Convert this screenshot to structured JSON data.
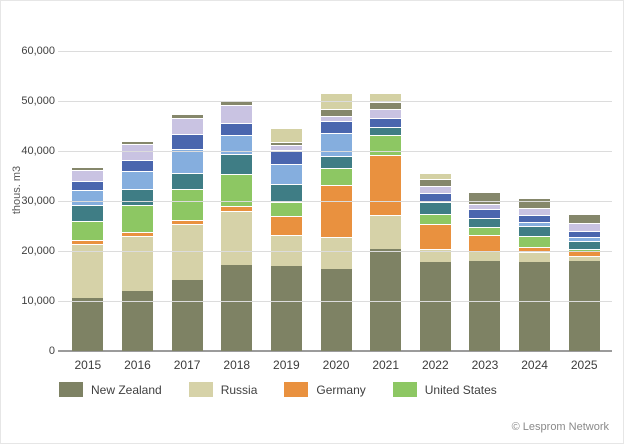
{
  "chart": {
    "ylabel": "thous. m3",
    "footer_credit": "© Lesprom Network",
    "grid_color": "#dcdcdc",
    "axis_color": "#9b9b9b",
    "background_color": "#ffffff"
  },
  "chart_data": {
    "type": "bar",
    "subtype": "stacked",
    "title": "",
    "xlabel": "",
    "ylabel": "thous. m3",
    "ylim": [
      0,
      60000
    ],
    "ytick_step": 10000,
    "ytick_labels": [
      "0",
      "10,000",
      "20,000",
      "30,000",
      "40,000",
      "50,000",
      "60,000"
    ],
    "grid": true,
    "legend_position": "bottom",
    "categories": [
      "2015",
      "2016",
      "2017",
      "2018",
      "2019",
      "2020",
      "2021",
      "2022",
      "2023",
      "2024",
      "2025"
    ],
    "series": [
      {
        "name": "New Zealand",
        "color": "#7e8264",
        "in_legend": true,
        "values": [
          10600,
          12000,
          14100,
          17100,
          17000,
          16300,
          20300,
          17700,
          18000,
          17700,
          18000
        ]
      },
      {
        "name": "Russia",
        "color": "#d6d2a8",
        "in_legend": true,
        "values": [
          10700,
          11000,
          11100,
          10700,
          6200,
          6400,
          6700,
          2600,
          2000,
          2000,
          1000
        ]
      },
      {
        "name": "Germany",
        "color": "#e9913f",
        "in_legend": true,
        "values": [
          700,
          700,
          800,
          900,
          3800,
          10300,
          12000,
          5000,
          3100,
          1000,
          1000
        ]
      },
      {
        "name": "United States",
        "color": "#8dc763",
        "in_legend": true,
        "values": [
          3800,
          5300,
          6100,
          6400,
          2700,
          3300,
          3900,
          2000,
          1600,
          2100,
          300
        ]
      },
      {
        "name": "unlabeled-teal",
        "color": "#3f7d85",
        "in_legend": false,
        "values": [
          3200,
          3100,
          3200,
          3900,
          3500,
          2400,
          1600,
          2300,
          1700,
          1900,
          1500
        ]
      },
      {
        "name": "unlabeled-light-blue",
        "color": "#85aede",
        "in_legend": false,
        "values": [
          3000,
          3600,
          4700,
          3700,
          4000,
          4600,
          0,
          0,
          0,
          700,
          700
        ]
      },
      {
        "name": "unlabeled-dark-blue",
        "color": "#4a66ae",
        "in_legend": false,
        "values": [
          1800,
          2100,
          3000,
          2300,
          2700,
          2400,
          1800,
          1700,
          1700,
          1300,
          1200
        ]
      },
      {
        "name": "unlabeled-lavender",
        "color": "#c9c3e2",
        "in_legend": false,
        "values": [
          2200,
          3100,
          3200,
          3500,
          900,
          1000,
          1700,
          1400,
          1000,
          1300,
          1600
        ]
      },
      {
        "name": "unlabeled-olive-gray",
        "color": "#85876b",
        "in_legend": false,
        "values": [
          600,
          500,
          700,
          900,
          500,
          1300,
          1300,
          1300,
          2400,
          2000,
          1700
        ]
      },
      {
        "name": "unlabeled-tan-top",
        "color": "#d4d1a4",
        "in_legend": false,
        "values": [
          0,
          0,
          0,
          0,
          2700,
          3200,
          1800,
          1100,
          0,
          0,
          0
        ]
      }
    ],
    "totals": [
      36600,
      41400,
      46900,
      49400,
      44000,
      51200,
      51100,
      35100,
      31500,
      30000,
      27000
    ]
  }
}
